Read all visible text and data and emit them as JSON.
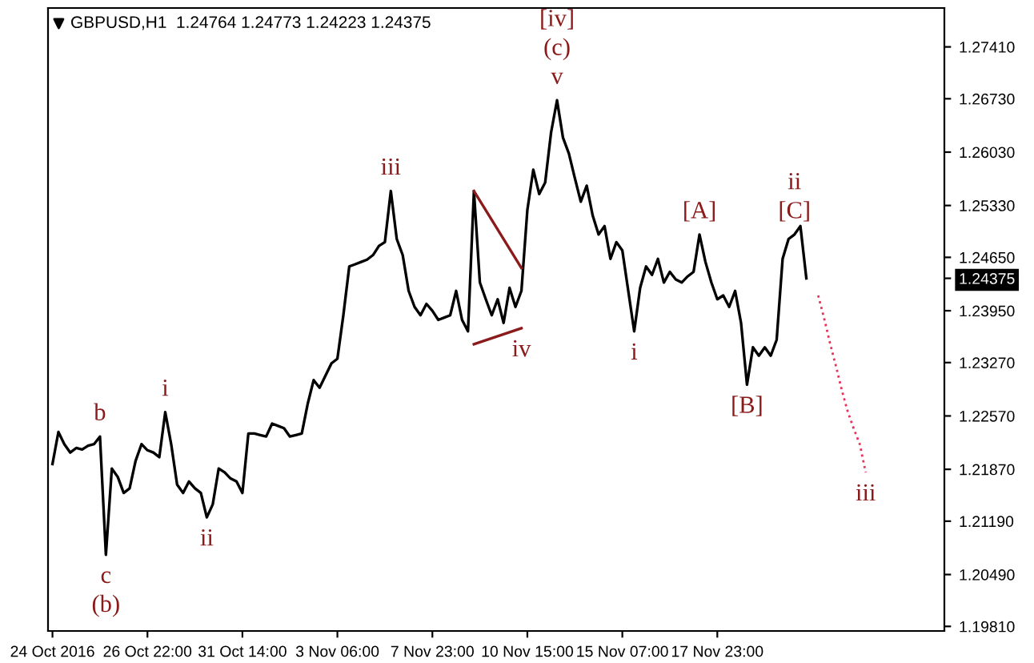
{
  "chart_data": {
    "type": "line",
    "title": "GBPUSD,H1  1.24764 1.24773 1.24223 1.24375",
    "categories": [
      "24 Oct 2016",
      null,
      null,
      null,
      null,
      null,
      null,
      null,
      null,
      null,
      null,
      null,
      null,
      null,
      null,
      null,
      "26 Oct 22:00",
      null,
      null,
      null,
      null,
      null,
      null,
      null,
      null,
      null,
      null,
      null,
      null,
      null,
      null,
      null,
      "31 Oct 14:00",
      null,
      null,
      null,
      null,
      null,
      null,
      null,
      null,
      null,
      null,
      null,
      null,
      null,
      null,
      null,
      "3 Nov 06:00",
      null,
      null,
      null,
      null,
      null,
      null,
      null,
      null,
      null,
      null,
      null,
      null,
      null,
      null,
      null,
      "7 Nov 23:00",
      null,
      null,
      null,
      null,
      null,
      null,
      null,
      null,
      null,
      null,
      null,
      null,
      null,
      null,
      null,
      "10 Nov 15:00",
      null,
      null,
      null,
      null,
      null,
      null,
      null,
      null,
      null,
      null,
      null,
      null,
      null,
      null,
      null,
      "15 Nov 07:00",
      null,
      null,
      null,
      null,
      null,
      null,
      null,
      null,
      null,
      null,
      null,
      null,
      null,
      null,
      null,
      "17 Nov 23:00",
      null,
      null,
      null,
      null,
      null,
      null,
      null,
      null,
      null,
      null,
      null,
      null,
      null,
      null,
      null,
      null,
      null,
      null,
      null,
      null,
      null,
      null,
      null,
      null,
      null,
      null,
      null,
      null,
      null,
      null,
      null,
      null,
      null,
      null,
      null,
      null,
      null,
      null
    ],
    "series": [
      {
        "color": "#000000",
        "line_style": "solid",
        "values": [
          1.2194,
          1.2236,
          1.222,
          1.2209,
          1.2215,
          1.2213,
          1.2218,
          1.222,
          1.223,
          1.2075,
          1.2188,
          1.2177,
          1.2156,
          1.2162,
          1.2198,
          1.222,
          1.2212,
          1.2209,
          1.2203,
          1.2262,
          1.222,
          1.2167,
          1.2156,
          1.2171,
          1.2162,
          1.2156,
          1.2124,
          1.2141,
          1.2188,
          1.2183,
          1.2175,
          1.2171,
          1.2156,
          1.2234,
          1.2234,
          1.2232,
          1.223,
          1.2247,
          1.2244,
          1.2241,
          1.223,
          1.2232,
          1.2234,
          1.2273,
          1.2304,
          1.2294,
          1.231,
          1.2326,
          1.2332,
          1.2389,
          1.2453,
          1.2456,
          1.2459,
          1.2462,
          1.2468,
          1.248,
          1.2485,
          1.2552,
          1.2489,
          1.2468,
          1.2421,
          1.24,
          1.2389,
          1.2404,
          1.2395,
          1.2383,
          1.2386,
          1.2389,
          1.2421,
          1.2383,
          1.2368,
          1.2552,
          1.2432,
          1.241,
          1.2389,
          1.241,
          1.2379,
          1.2425,
          1.24,
          1.2421,
          1.2527,
          1.258,
          1.2548,
          1.2563,
          1.2629,
          1.2671,
          1.2622,
          1.2601,
          1.2569,
          1.2538,
          1.2559,
          1.252,
          1.2495,
          1.2506,
          1.2463,
          1.2485,
          1.2474,
          1.2421,
          1.2368,
          1.2425,
          1.2453,
          1.2442,
          1.2463,
          1.2432,
          1.2446,
          1.2436,
          1.2432,
          1.244,
          1.2446,
          1.2495,
          1.2459,
          1.2432,
          1.241,
          1.2415,
          1.24,
          1.2421,
          1.2379,
          1.2298,
          1.2347,
          1.2336,
          1.2347,
          1.2336,
          1.2357,
          1.2463,
          1.2489,
          1.2495,
          1.2506,
          1.24375,
          null,
          null,
          null,
          null,
          null,
          null,
          null,
          null,
          null,
          null,
          null,
          null,
          null,
          null,
          null,
          null,
          null,
          null,
          null,
          null,
          null,
          null,
          null
        ]
      },
      {
        "color": "#8b1a1a",
        "line_style": "solid",
        "values": [
          null,
          null,
          null,
          null,
          null,
          null,
          null,
          null,
          null,
          null,
          null,
          null,
          null,
          null,
          null,
          null,
          null,
          null,
          null,
          null,
          null,
          null,
          null,
          null,
          null,
          null,
          null,
          null,
          null,
          null,
          null,
          null,
          null,
          null,
          null,
          null,
          null,
          null,
          null,
          null,
          null,
          null,
          null,
          null,
          null,
          null,
          null,
          null,
          null,
          null,
          null,
          null,
          null,
          null,
          null,
          null,
          null,
          null,
          null,
          null,
          null,
          null,
          null,
          null,
          null,
          null,
          null,
          null,
          null,
          null,
          null,
          1.2552,
          null,
          null,
          null,
          null,
          null,
          null,
          null,
          1.2451,
          null,
          null,
          null,
          null,
          null,
          null,
          null,
          null,
          null,
          null,
          null,
          null,
          null,
          null,
          null,
          null,
          null,
          null,
          null,
          null,
          null,
          null,
          null,
          null,
          null,
          null,
          null,
          null,
          null,
          null,
          null,
          null,
          null,
          null,
          null,
          null,
          null,
          null,
          null,
          null,
          null,
          null,
          null,
          null,
          null,
          null,
          null,
          null,
          null,
          null,
          null,
          null,
          null,
          null,
          null,
          null,
          null,
          null,
          null,
          null,
          null,
          null,
          null,
          null,
          null,
          null,
          null,
          null,
          null,
          null,
          null
        ]
      },
      {
        "color": "#8b1a1a",
        "line_style": "solid",
        "values": [
          null,
          null,
          null,
          null,
          null,
          null,
          null,
          null,
          null,
          null,
          null,
          null,
          null,
          null,
          null,
          null,
          null,
          null,
          null,
          null,
          null,
          null,
          null,
          null,
          null,
          null,
          null,
          null,
          null,
          null,
          null,
          null,
          null,
          null,
          null,
          null,
          null,
          null,
          null,
          null,
          null,
          null,
          null,
          null,
          null,
          null,
          null,
          null,
          null,
          null,
          null,
          null,
          null,
          null,
          null,
          null,
          null,
          null,
          null,
          null,
          null,
          null,
          null,
          null,
          null,
          null,
          null,
          null,
          null,
          null,
          null,
          1.2351,
          null,
          null,
          null,
          null,
          null,
          null,
          null,
          1.2372,
          null,
          null,
          null,
          null,
          null,
          null,
          null,
          null,
          null,
          null,
          null,
          null,
          null,
          null,
          null,
          null,
          null,
          null,
          null,
          null,
          null,
          null,
          null,
          null,
          null,
          null,
          null,
          null,
          null,
          null,
          null,
          null,
          null,
          null,
          null,
          null,
          null,
          null,
          null,
          null,
          null,
          null,
          null,
          null,
          null,
          null,
          null,
          null,
          null,
          null,
          null,
          null,
          null,
          null,
          null,
          null,
          null,
          null,
          null,
          null,
          null,
          null,
          null,
          null,
          null,
          null,
          null,
          null,
          null,
          null,
          null
        ]
      },
      {
        "color": "#e8305a",
        "line_style": "dotted",
        "values": [
          null,
          null,
          null,
          null,
          null,
          null,
          null,
          null,
          null,
          null,
          null,
          null,
          null,
          null,
          null,
          null,
          null,
          null,
          null,
          null,
          null,
          null,
          null,
          null,
          null,
          null,
          null,
          null,
          null,
          null,
          null,
          null,
          null,
          null,
          null,
          null,
          null,
          null,
          null,
          null,
          null,
          null,
          null,
          null,
          null,
          null,
          null,
          null,
          null,
          null,
          null,
          null,
          null,
          null,
          null,
          null,
          null,
          null,
          null,
          null,
          null,
          null,
          null,
          null,
          null,
          null,
          null,
          null,
          null,
          null,
          null,
          null,
          null,
          null,
          null,
          null,
          null,
          null,
          null,
          null,
          null,
          null,
          null,
          null,
          null,
          null,
          null,
          null,
          null,
          null,
          null,
          null,
          null,
          null,
          null,
          null,
          null,
          null,
          null,
          null,
          null,
          null,
          null,
          null,
          null,
          null,
          null,
          null,
          null,
          null,
          null,
          null,
          null,
          null,
          null,
          null,
          null,
          null,
          null,
          null,
          null,
          null,
          null,
          null,
          null,
          null,
          null,
          null,
          null,
          1.2415,
          1.2385,
          1.2352,
          1.2322,
          1.229,
          1.2262,
          1.224,
          1.222,
          1.2183,
          null,
          null,
          null,
          null,
          null,
          null,
          null,
          null,
          null,
          null,
          null,
          null,
          null
        ]
      }
    ],
    "ylim": [
      1.1975,
      1.2792
    ],
    "yticks": [
      {
        "value": 1.1981,
        "label": "1.19810"
      },
      {
        "value": 1.2049,
        "label": "1.20490"
      },
      {
        "value": 1.2119,
        "label": "1.21190"
      },
      {
        "value": 1.2187,
        "label": "1.21870"
      },
      {
        "value": 1.2257,
        "label": "1.22570"
      },
      {
        "value": 1.2327,
        "label": "1.23270"
      },
      {
        "value": 1.2395,
        "label": "1.23950"
      },
      {
        "value": 1.2465,
        "label": "1.24650"
      },
      {
        "value": 1.2533,
        "label": "1.25330"
      },
      {
        "value": 1.2603,
        "label": "1.26030"
      },
      {
        "value": 1.2673,
        "label": "1.26730"
      },
      {
        "value": 1.2741,
        "label": "1.27410"
      },
      {
        "value": 1.24375,
        "label": "1.24375"
      }
    ],
    "grid": false,
    "legend": false,
    "marker": "none",
    "annotations": [
      "[iv]",
      "(c)",
      "v",
      "iii",
      "b",
      "c",
      "(b)",
      "i",
      "ii",
      "iv",
      "i",
      "[A]",
      "ii",
      "[C]",
      "[B]",
      "iii"
    ]
  }
}
